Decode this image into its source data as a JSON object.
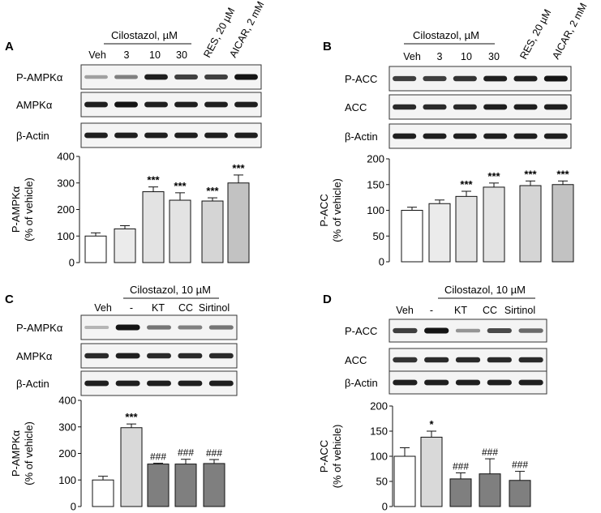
{
  "panels": [
    {
      "id": "A",
      "label": "A",
      "treatment_header": "Cilostazol, µM",
      "lanes": [
        "Veh",
        "3",
        "10",
        "30",
        "RES, 20 µM",
        "AICAR, 2 mM"
      ],
      "rotated_lanes": [
        4,
        5
      ],
      "blots": [
        {
          "label": "P-AMPKα",
          "intensity": [
            0.35,
            0.5,
            0.95,
            0.8,
            0.8,
            1.0
          ]
        },
        {
          "label": "AMPKα",
          "intensity": [
            0.95,
            1.0,
            0.95,
            0.95,
            0.95,
            0.95
          ]
        },
        {
          "label": "β-Actin",
          "intensity": [
            0.95,
            0.95,
            0.95,
            0.95,
            0.95,
            0.95
          ]
        }
      ],
      "chart_data": {
        "type": "bar",
        "categories": [
          "Veh",
          "3",
          "10",
          "30",
          "RES, 20 µM",
          "AICAR, 2 mM"
        ],
        "values": [
          100,
          127,
          267,
          235,
          232,
          300
        ],
        "errors": [
          12,
          12,
          18,
          28,
          12,
          30
        ],
        "bar_colors": [
          "#ffffff",
          "#ebebeb",
          "#e3e3e3",
          "#e3e3e3",
          "#d5d5d5",
          "#c2c2c2"
        ],
        "annotations": [
          "",
          "",
          "***",
          "***",
          "***",
          "***"
        ],
        "ylabel": "P-AMPKα",
        "ylabel2": "(% of vehicle)",
        "ylim": [
          0,
          400
        ],
        "yticks": [
          "0",
          "100",
          "200",
          "300",
          "400"
        ]
      }
    },
    {
      "id": "B",
      "label": "B",
      "treatment_header": "Cilostazol, µM",
      "lanes": [
        "Veh",
        "3",
        "10",
        "30",
        "RES, 20 µM",
        "AICAR, 2 mM"
      ],
      "rotated_lanes": [
        4,
        5
      ],
      "blots": [
        {
          "label": "P-ACC",
          "intensity": [
            0.8,
            0.8,
            0.85,
            0.95,
            0.95,
            1.0
          ]
        },
        {
          "label": "ACC",
          "intensity": [
            0.9,
            0.9,
            0.9,
            0.95,
            0.95,
            0.95
          ]
        },
        {
          "label": "β-Actin",
          "intensity": [
            0.95,
            0.95,
            0.95,
            0.95,
            0.95,
            0.95
          ]
        }
      ],
      "chart_data": {
        "type": "bar",
        "categories": [
          "Veh",
          "3",
          "10",
          "30",
          "RES, 20 µM",
          "AICAR, 2 mM"
        ],
        "values": [
          100,
          113,
          127,
          145,
          148,
          150
        ],
        "errors": [
          6,
          7,
          10,
          8,
          9,
          7
        ],
        "bar_colors": [
          "#ffffff",
          "#ebebeb",
          "#e3e3e3",
          "#e3e3e3",
          "#d5d5d5",
          "#c2c2c2"
        ],
        "annotations": [
          "",
          "",
          "***",
          "***",
          "***",
          "***"
        ],
        "ylabel": "P-ACC",
        "ylabel2": "(% of vehicle)",
        "ylim": [
          0,
          200
        ],
        "yticks": [
          "0",
          "50",
          "100",
          "150",
          "200"
        ]
      }
    },
    {
      "id": "C",
      "label": "C",
      "treatment_header": "Cilostazol, 10 µM",
      "lanes": [
        "Veh",
        "-",
        "KT",
        "CC",
        "Sirtinol"
      ],
      "rotated_lanes": [],
      "blots": [
        {
          "label": "P-AMPKα",
          "intensity": [
            0.25,
            1.0,
            0.55,
            0.5,
            0.55
          ]
        },
        {
          "label": "AMPKα",
          "intensity": [
            0.9,
            0.95,
            0.9,
            0.9,
            0.9
          ]
        },
        {
          "label": "β-Actin",
          "intensity": [
            0.95,
            0.95,
            0.95,
            0.95,
            0.95
          ]
        }
      ],
      "chart_data": {
        "type": "bar",
        "categories": [
          "Veh",
          "-",
          "KT",
          "CC",
          "Sirtinol"
        ],
        "values": [
          100,
          297,
          160,
          160,
          162
        ],
        "errors": [
          14,
          14,
          3,
          18,
          15
        ],
        "bar_colors": [
          "#ffffff",
          "#d9d9d9",
          "#7f7f7f",
          "#7f7f7f",
          "#7f7f7f"
        ],
        "annotations": [
          "",
          "***",
          "###",
          "###",
          "###"
        ],
        "ylabel": "P-AMPKα",
        "ylabel2": "(% of vehicle)",
        "ylim": [
          0,
          400
        ],
        "yticks": [
          "0",
          "100",
          "200",
          "300",
          "400"
        ]
      }
    },
    {
      "id": "D",
      "label": "D",
      "treatment_header": "Cilostazol, 10 µM",
      "lanes": [
        "Veh",
        "-",
        "KT",
        "CC",
        "Sirtinol"
      ],
      "rotated_lanes": [],
      "blots": [
        {
          "label": "P-ACC",
          "intensity": [
            0.8,
            1.0,
            0.4,
            0.75,
            0.6
          ]
        },
        {
          "label": "ACC",
          "intensity": [
            0.85,
            0.9,
            0.9,
            0.9,
            0.9
          ]
        },
        {
          "label": "β-Actin",
          "intensity": [
            0.95,
            0.95,
            0.95,
            0.95,
            0.95
          ]
        }
      ],
      "chart_data": {
        "type": "bar",
        "categories": [
          "Veh",
          "-",
          "KT",
          "CC",
          "Sirtinol"
        ],
        "values": [
          100,
          138,
          55,
          65,
          52
        ],
        "errors": [
          17,
          12,
          12,
          30,
          18
        ],
        "bar_colors": [
          "#ffffff",
          "#d9d9d9",
          "#7f7f7f",
          "#7f7f7f",
          "#7f7f7f"
        ],
        "annotations": [
          "",
          "*",
          "###",
          "###",
          "###"
        ],
        "ylabel": "P-ACC",
        "ylabel2": "(% of vehicle)",
        "ylim": [
          0,
          200
        ],
        "yticks": [
          "0",
          "50",
          "100",
          "150",
          "200"
        ]
      }
    }
  ]
}
